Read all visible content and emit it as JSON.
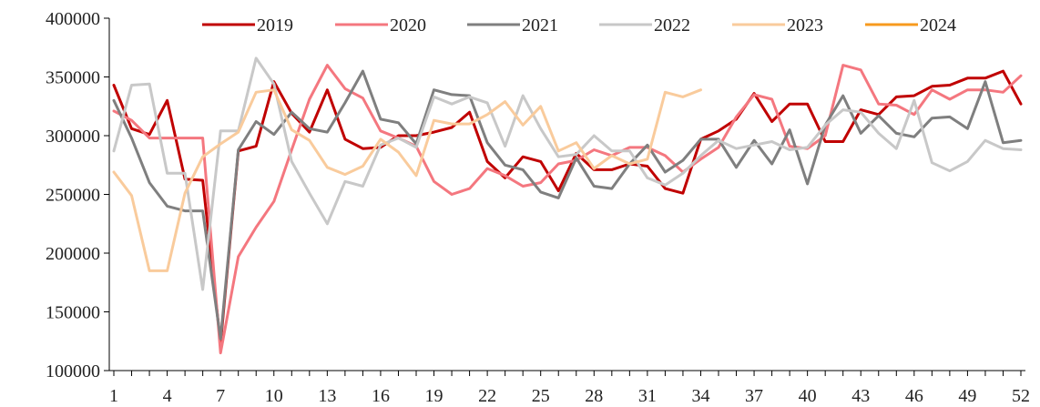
{
  "chart_data": {
    "type": "line",
    "title": "",
    "xlabel": "",
    "ylabel": "",
    "ylim": [
      100000,
      400000
    ],
    "y_ticks": [
      "100000",
      "150000",
      "200000",
      "250000",
      "300000",
      "350000",
      "400000"
    ],
    "x_ticks": [
      "1",
      "4",
      "7",
      "10",
      "13",
      "16",
      "19",
      "22",
      "25",
      "28",
      "31",
      "34",
      "37",
      "40",
      "43",
      "46",
      "49",
      "52"
    ],
    "xlim": [
      1,
      52
    ],
    "legend_position": "top",
    "grid": false,
    "series": [
      {
        "name": "2019",
        "color": "#C00000",
        "values": [
          343000,
          306000,
          301000,
          330000,
          263000,
          262000,
          123000,
          287000,
          291000,
          346000,
          319000,
          303000,
          339000,
          297000,
          289000,
          290000,
          300000,
          300000,
          303000,
          307000,
          320000,
          278000,
          264000,
          282000,
          278000,
          253000,
          285000,
          271000,
          271000,
          276000,
          274000,
          255000,
          251000,
          297000,
          304000,
          314000,
          336000,
          312000,
          327000,
          327000,
          295000,
          295000,
          322000,
          318000,
          333000,
          334000,
          342000,
          343000,
          349000,
          349000,
          355000,
          327000
        ]
      },
      {
        "name": "2020",
        "color": "#F4777F",
        "values": [
          321000,
          313000,
          298000,
          298000,
          298000,
          298000,
          115000,
          197000,
          222000,
          244000,
          288000,
          331000,
          360000,
          340000,
          332000,
          304000,
          298000,
          291000,
          261000,
          250000,
          255000,
          272000,
          266000,
          257000,
          260000,
          276000,
          279000,
          288000,
          283000,
          290000,
          290000,
          283000,
          269000,
          280000,
          290000,
          316000,
          335000,
          331000,
          291000,
          289000,
          300000,
          360000,
          356000,
          327000,
          326000,
          318000,
          339000,
          331000,
          339000,
          339000,
          337000,
          351000
        ]
      },
      {
        "name": "2021",
        "color": "#7F7F7F",
        "values": [
          330000,
          298000,
          260000,
          240000,
          236000,
          236000,
          127000,
          288000,
          312000,
          301000,
          320000,
          306000,
          303000,
          328000,
          355000,
          314000,
          311000,
          293000,
          339000,
          335000,
          334000,
          294000,
          275000,
          271000,
          252000,
          247000,
          281000,
          257000,
          255000,
          276000,
          292000,
          269000,
          279000,
          297000,
          297000,
          273000,
          296000,
          276000,
          305000,
          259000,
          309000,
          334000,
          302000,
          317000,
          302000,
          299000,
          315000,
          316000,
          306000,
          346000,
          294000,
          296000
        ]
      },
      {
        "name": "2022",
        "color": "#C8C8C8",
        "values": [
          287000,
          343000,
          344000,
          268000,
          268000,
          169000,
          304000,
          304000,
          366000,
          344000,
          278000,
          251000,
          225000,
          261000,
          257000,
          292000,
          298000,
          290000,
          333000,
          327000,
          333000,
          328000,
          291000,
          334000,
          306000,
          282000,
          284000,
          300000,
          287000,
          287000,
          264000,
          258000,
          268000,
          283000,
          296000,
          289000,
          292000,
          295000,
          288000,
          290000,
          309000,
          322000,
          320000,
          302000,
          289000,
          330000,
          277000,
          270000,
          278000,
          296000,
          289000,
          288000
        ]
      },
      {
        "name": "2023",
        "color": "#F9CB9C",
        "values": [
          269000,
          249000,
          185000,
          185000,
          251000,
          282000,
          293000,
          303000,
          337000,
          339000,
          305000,
          296000,
          273000,
          267000,
          274000,
          297000,
          286000,
          266000,
          313000,
          310000,
          310000,
          318000,
          329000,
          309000,
          325000,
          287000,
          294000,
          272000,
          283000,
          276000,
          280000,
          337000,
          333000,
          339000
        ]
      },
      {
        "name": "2024",
        "color": "#F79A1E",
        "values": []
      }
    ]
  }
}
